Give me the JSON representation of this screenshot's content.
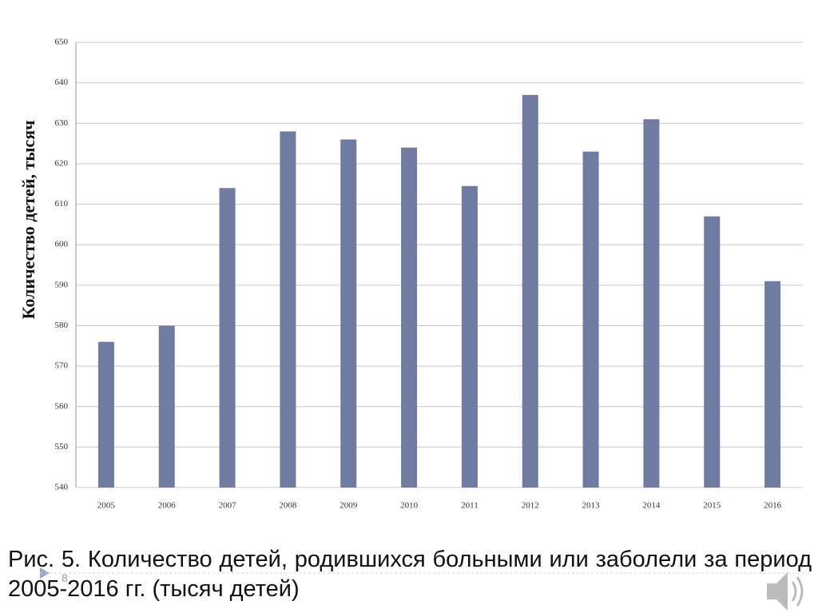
{
  "chart_data": {
    "type": "bar",
    "y_label": "Количество детей, тысяч",
    "categories": [
      "2005",
      "2006",
      "2007",
      "2008",
      "2009",
      "2010",
      "2011",
      "2012",
      "2013",
      "2014",
      "2015",
      "2016"
    ],
    "values": [
      576,
      580,
      614,
      628,
      626,
      624,
      614.5,
      637,
      623,
      631,
      607,
      591
    ],
    "color": "#6f7ba0",
    "ylim": [
      540,
      650
    ],
    "yticks": [
      540,
      550,
      560,
      570,
      580,
      590,
      600,
      610,
      620,
      630,
      640,
      650
    ],
    "grid": true
  },
  "caption": "Рис. 5.  Количество детей, родившихся больными или заболели за период 2005-2016 гг. (тысяч детей)",
  "slide_number": "8"
}
